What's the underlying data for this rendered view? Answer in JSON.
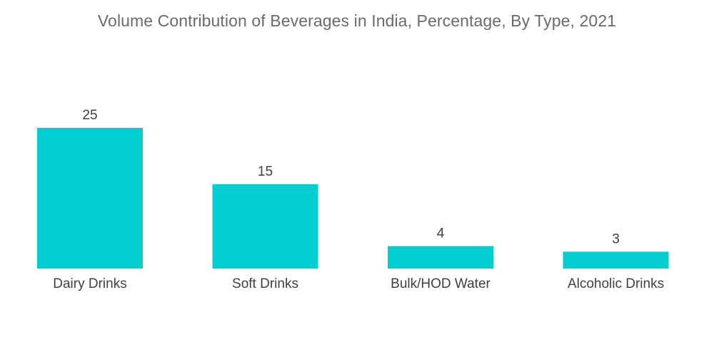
{
  "chart_data": {
    "type": "bar",
    "title": "Volume Contribution of Beverages in India, Percentage,  By Type,  2021",
    "categories": [
      "Dairy Drinks",
      "Soft Drinks",
      "Bulk/HOD Water",
      "Alcoholic Drinks"
    ],
    "values": [
      25,
      15,
      4,
      3
    ],
    "value_labels": [
      "25",
      "15",
      "4",
      "3"
    ],
    "xlabel": "",
    "ylabel": "",
    "ylim": [
      0,
      25
    ],
    "grid": false,
    "legend": "none",
    "bar_color": "#00CED1"
  }
}
